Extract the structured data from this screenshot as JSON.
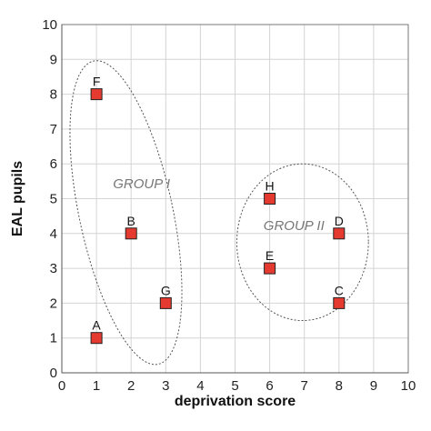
{
  "chart_data": {
    "type": "scatter",
    "xlabel": "deprivation score",
    "ylabel": "EAL pupils",
    "xlim": [
      0,
      10
    ],
    "ylim": [
      0,
      10
    ],
    "xticks": [
      0,
      1,
      2,
      3,
      4,
      5,
      6,
      7,
      8,
      9,
      10
    ],
    "yticks": [
      0,
      1,
      2,
      3,
      4,
      5,
      6,
      7,
      8,
      9,
      10
    ],
    "grid": true,
    "points": [
      {
        "label": "A",
        "x": 1,
        "y": 1
      },
      {
        "label": "B",
        "x": 2,
        "y": 4
      },
      {
        "label": "C",
        "x": 8,
        "y": 2
      },
      {
        "label": "D",
        "x": 8,
        "y": 4
      },
      {
        "label": "E",
        "x": 6,
        "y": 3
      },
      {
        "label": "F",
        "x": 1,
        "y": 8
      },
      {
        "label": "G",
        "x": 3,
        "y": 2
      },
      {
        "label": "H",
        "x": 6,
        "y": 5
      }
    ],
    "groups": [
      {
        "label": "GROUP I",
        "members": [
          "A",
          "B",
          "F",
          "G"
        ]
      },
      {
        "label": "GROUP II",
        "members": [
          "C",
          "D",
          "E",
          "H"
        ]
      }
    ],
    "colors": {
      "marker": "#e53a2f",
      "grid": "#d4d4d4"
    }
  }
}
